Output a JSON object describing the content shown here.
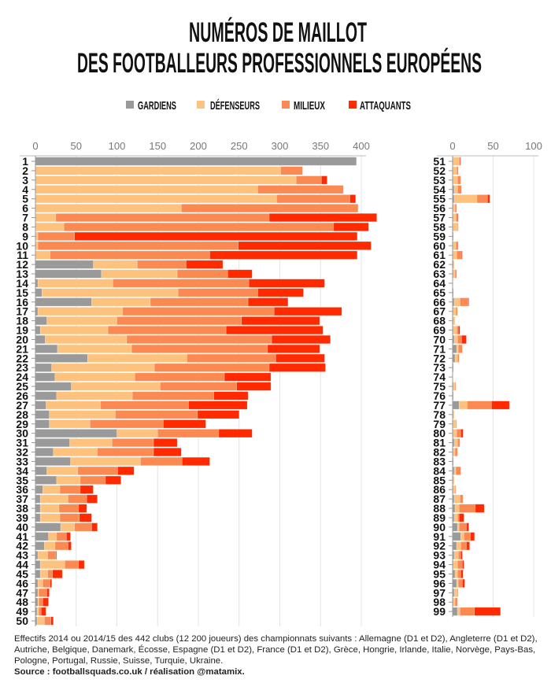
{
  "title_lines": [
    "NUMÉROS DE MAILLOT",
    "DES FOOTBALLEURS PROFESSIONNELS EUROPÉENS"
  ],
  "legend": [
    {
      "name": "GARDIENS",
      "color": "#9a9a9a"
    },
    {
      "name": "DÉFENSEURS",
      "color": "#fdc37e"
    },
    {
      "name": "MILIEUX",
      "color": "#fb8a52"
    },
    {
      "name": "ATTAQUANTS",
      "color": "#ff2a00"
    }
  ],
  "chart_data": [
    {
      "type": "bar",
      "orientation": "horizontal",
      "stacked": true,
      "xlim": [
        0,
        400
      ],
      "xticks": [
        0,
        50,
        100,
        150,
        200,
        250,
        300,
        350,
        400
      ],
      "grid": true,
      "categories": [
        "1",
        "2",
        "3",
        "4",
        "5",
        "6",
        "7",
        "8",
        "9",
        "10",
        "11",
        "12",
        "13",
        "14",
        "15",
        "16",
        "17",
        "18",
        "19",
        "20",
        "21",
        "22",
        "23",
        "24",
        "25",
        "26",
        "27",
        "28",
        "29",
        "30",
        "31",
        "32",
        "33",
        "34",
        "35",
        "36",
        "37",
        "38",
        "39",
        "40",
        "41",
        "42",
        "43",
        "44",
        "45",
        "46",
        "47",
        "48",
        "49",
        "50"
      ],
      "series": [
        {
          "name": "GARDIENS",
          "values": [
            394,
            0,
            0,
            0,
            0,
            0,
            0,
            0,
            0,
            0,
            0,
            71,
            81,
            3,
            8,
            69,
            3,
            14,
            6,
            12,
            27,
            64,
            20,
            24,
            44,
            26,
            13,
            17,
            17,
            100,
            42,
            22,
            43,
            14,
            26,
            9,
            6,
            6,
            6,
            31,
            16,
            11,
            3,
            6,
            6,
            3,
            3,
            3,
            2,
            2
          ]
        },
        {
          "name": "DÉFENSEURS",
          "values": [
            0,
            301,
            320,
            273,
            296,
            179,
            25,
            35,
            3,
            3,
            18,
            54,
            93,
            92,
            167,
            72,
            104,
            86,
            83,
            100,
            91,
            122,
            126,
            98,
            109,
            93,
            67,
            81,
            50,
            50,
            52,
            54,
            86,
            38,
            29,
            21,
            34,
            23,
            24,
            17,
            10,
            13,
            12,
            30,
            9,
            6,
            1,
            1,
            2,
            9
          ]
        },
        {
          "name": "MILIEUX",
          "values": [
            0,
            27,
            31,
            105,
            90,
            217,
            262,
            331,
            45,
            246,
            196,
            60,
            62,
            167,
            98,
            120,
            186,
            153,
            145,
            178,
            167,
            109,
            141,
            110,
            94,
            100,
            108,
            101,
            90,
            75,
            51,
            69,
            51,
            49,
            31,
            25,
            23,
            24,
            24,
            21,
            12,
            16,
            10,
            17,
            6,
            9,
            10,
            5,
            3,
            8
          ]
        },
        {
          "name": "ATTAQUANTS",
          "values": [
            0,
            0,
            7,
            0,
            7,
            0,
            132,
            43,
            347,
            163,
            181,
            45,
            30,
            93,
            56,
            49,
            83,
            96,
            119,
            72,
            64,
            60,
            69,
            57,
            42,
            42,
            72,
            51,
            52,
            41,
            29,
            34,
            34,
            20,
            19,
            16,
            13,
            10,
            15,
            7,
            5,
            4,
            1,
            7,
            12,
            2,
            3,
            7,
            6,
            3
          ]
        }
      ]
    },
    {
      "type": "bar",
      "orientation": "horizontal",
      "stacked": true,
      "xlim": [
        0,
        100
      ],
      "xticks": [
        0,
        50,
        100
      ],
      "grid": true,
      "categories": [
        "51",
        "52",
        "53",
        "54",
        "55",
        "56",
        "57",
        "58",
        "59",
        "60",
        "61",
        "62",
        "63",
        "64",
        "65",
        "66",
        "67",
        "68",
        "69",
        "70",
        "71",
        "72",
        "73",
        "74",
        "75",
        "76",
        "77",
        "78",
        "79",
        "80",
        "81",
        "82",
        "83",
        "84",
        "85",
        "86",
        "87",
        "88",
        "89",
        "90",
        "91",
        "92",
        "93",
        "94",
        "95",
        "96",
        "97",
        "98",
        "99"
      ],
      "series": [
        {
          "name": "GARDIENS",
          "values": [
            1,
            1,
            1,
            2,
            2,
            1,
            1,
            1,
            1,
            1,
            1,
            1,
            1,
            0,
            1,
            2,
            1,
            1,
            1,
            2,
            5,
            3,
            1,
            0,
            1,
            1,
            8,
            1,
            1,
            1,
            2,
            1,
            1,
            2,
            1,
            1,
            2,
            3,
            2,
            6,
            10,
            5,
            2,
            1,
            3,
            5,
            2,
            1,
            6
          ]
        },
        {
          "name": "DÉFENSEURS",
          "values": [
            7,
            4,
            5,
            4,
            28,
            2,
            3,
            5,
            0,
            3,
            4,
            1,
            2,
            0,
            0,
            7,
            3,
            2,
            4,
            4,
            2,
            3,
            0,
            0,
            2,
            0,
            10,
            1,
            3,
            4,
            4,
            2,
            0,
            2,
            1,
            2,
            7,
            5,
            4,
            2,
            4,
            5,
            5,
            5,
            3,
            2,
            4,
            2,
            3
          ]
        },
        {
          "name": "MILIEUX",
          "values": [
            1,
            2,
            4,
            5,
            13,
            2,
            2,
            1,
            0,
            3,
            6,
            0,
            2,
            0,
            0,
            10,
            2,
            0,
            2,
            5,
            5,
            2,
            0,
            0,
            1,
            0,
            30,
            0,
            1,
            5,
            3,
            3,
            0,
            6,
            0,
            1,
            4,
            20,
            2,
            9,
            8,
            7,
            3,
            6,
            4,
            5,
            1,
            3,
            18
          ]
        },
        {
          "name": "ATTAQUANTS",
          "values": [
            1,
            0,
            0,
            0,
            3,
            0,
            1,
            0,
            0,
            0,
            1,
            0,
            0,
            0,
            0,
            1,
            0,
            0,
            2,
            6,
            0,
            0,
            0,
            0,
            0,
            0,
            22,
            0,
            0,
            3,
            0,
            0,
            0,
            0,
            0,
            0,
            0,
            11,
            6,
            3,
            5,
            4,
            2,
            2,
            3,
            3,
            0,
            0,
            32
          ]
        }
      ]
    }
  ],
  "footer": {
    "note": "Effectifs 2014 ou 2014/15 des 442 clubs (12 200 joueurs) des championnats suivants : Allemagne (D1 et D2), Angleterre (D1 et D2), Autriche, Belgique, Danemark, Écosse, Espagne (D1 et D2), France (D1 et D2), Grèce, Hongrie, Irlande, Italie, Norvège, Pays-Bas, Pologne, Portugal, Russie, Suisse, Turquie, Ukraine.",
    "source": "Source : footballsquads.co.uk / réalisation @matamix."
  }
}
